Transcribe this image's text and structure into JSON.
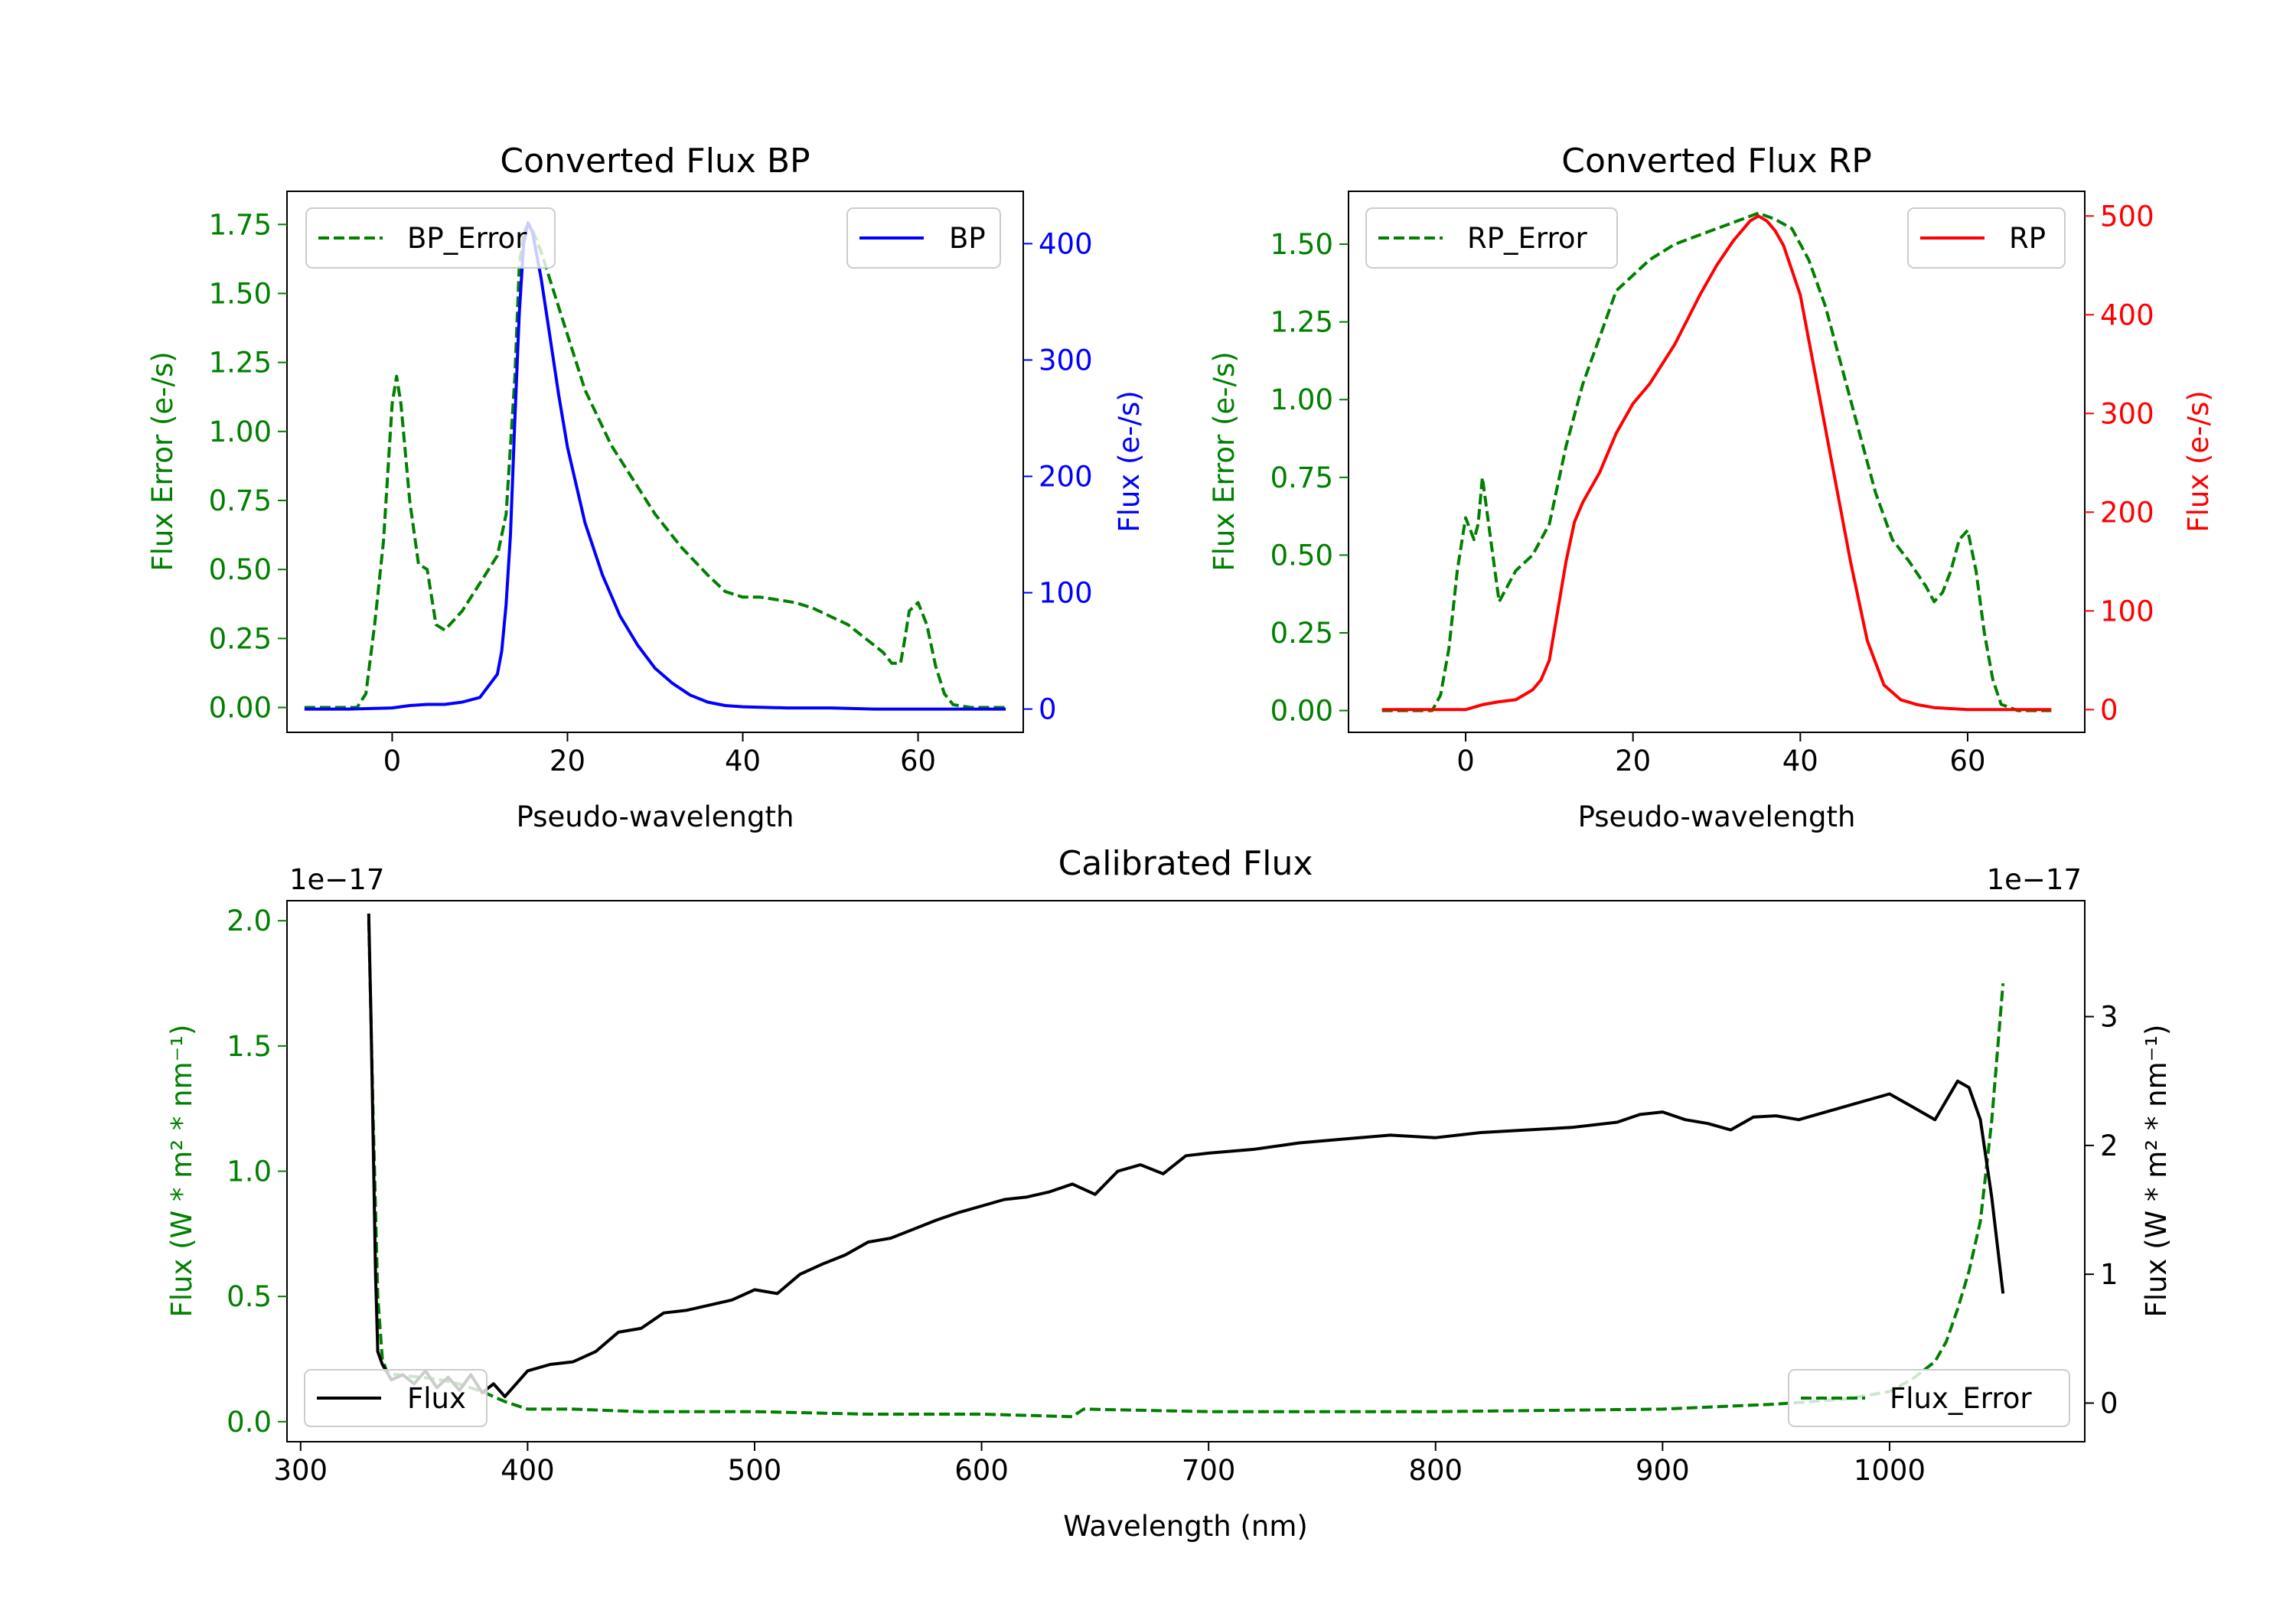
{
  "colors": {
    "axis": "#000000",
    "error_green": "#008000",
    "bp_blue": "#0000ff",
    "rp_red": "#ff0000",
    "flux_black": "#000000"
  },
  "chart_data": [
    {
      "id": "bp",
      "type": "line",
      "title": "Converted Flux BP",
      "xlabel": "Pseudo-wavelength",
      "ylabel_left": "Flux Error (e-/s)",
      "ylabel_right": "Flux (e-/s)",
      "xlim": [
        -12,
        72
      ],
      "ylim_left": [
        -0.09,
        1.87
      ],
      "ylim_right": [
        -20,
        445
      ],
      "xticks": [
        0,
        20,
        40,
        60
      ],
      "xtick_labels": [
        "0",
        "20",
        "40",
        "60"
      ],
      "yticks_left": [
        0,
        0.25,
        0.5,
        0.75,
        1.0,
        1.25,
        1.5,
        1.75
      ],
      "ytick_labels_left": [
        "0.00",
        "0.25",
        "0.50",
        "0.75",
        "1.00",
        "1.25",
        "1.50",
        "1.75"
      ],
      "yticks_right": [
        0,
        100,
        200,
        300,
        400
      ],
      "ytick_labels_right": [
        "0",
        "100",
        "200",
        "300",
        "400"
      ],
      "series": [
        {
          "name": "BP_Error",
          "axis": "left",
          "style": "dashed",
          "color": "#008000",
          "legend": "top-left",
          "x": [
            -10,
            -4,
            -3,
            -2,
            -1,
            0,
            0.5,
            1,
            2,
            3,
            4,
            5,
            6,
            8,
            10,
            12,
            13,
            14,
            14.5,
            15,
            15.5,
            16,
            17,
            18,
            20,
            22,
            25,
            28,
            30,
            33,
            36,
            38,
            40,
            42,
            44,
            46,
            48,
            50,
            52,
            54,
            56,
            57,
            58,
            58.5,
            59,
            60,
            61,
            62,
            63,
            64,
            66,
            70
          ],
          "values": [
            0,
            0,
            0.05,
            0.3,
            0.6,
            1.1,
            1.2,
            1.1,
            0.75,
            0.52,
            0.5,
            0.3,
            0.28,
            0.35,
            0.45,
            0.55,
            0.7,
            1.2,
            1.6,
            1.72,
            1.75,
            1.73,
            1.65,
            1.55,
            1.35,
            1.15,
            0.95,
            0.8,
            0.7,
            0.58,
            0.48,
            0.42,
            0.4,
            0.4,
            0.39,
            0.38,
            0.36,
            0.33,
            0.3,
            0.25,
            0.2,
            0.16,
            0.16,
            0.25,
            0.35,
            0.38,
            0.3,
            0.15,
            0.05,
            0.01,
            0,
            0
          ]
        },
        {
          "name": "BP",
          "axis": "right",
          "style": "solid",
          "color": "#0000ff",
          "legend": "top-right",
          "x": [
            -10,
            -5,
            0,
            2,
            4,
            6,
            8,
            10,
            12,
            12.5,
            13,
            13.5,
            14,
            14.5,
            15,
            15.5,
            16,
            16.5,
            17,
            18,
            19,
            20,
            22,
            24,
            26,
            28,
            30,
            32,
            34,
            36,
            38,
            40,
            45,
            50,
            55,
            60,
            65,
            70
          ],
          "values": [
            0,
            0,
            1,
            3,
            4,
            4,
            6,
            10,
            30,
            50,
            90,
            150,
            250,
            340,
            400,
            418,
            410,
            390,
            370,
            320,
            270,
            225,
            160,
            115,
            80,
            55,
            35,
            22,
            12,
            6,
            3,
            2,
            1,
            1,
            0,
            0,
            0,
            0
          ]
        }
      ]
    },
    {
      "id": "rp",
      "type": "line",
      "title": "Converted Flux RP",
      "xlabel": "Pseudo-wavelength",
      "ylabel_left": "Flux Error (e-/s)",
      "ylabel_right": "Flux (e-/s)",
      "xlim": [
        -14,
        74
      ],
      "ylim_left": [
        -0.07,
        1.67
      ],
      "ylim_right": [
        -23,
        525
      ],
      "xticks": [
        0,
        20,
        40,
        60
      ],
      "xtick_labels": [
        "0",
        "20",
        "40",
        "60"
      ],
      "yticks_left": [
        0,
        0.25,
        0.5,
        0.75,
        1.0,
        1.25,
        1.5
      ],
      "ytick_labels_left": [
        "0.00",
        "0.25",
        "0.50",
        "0.75",
        "1.00",
        "1.25",
        "1.50"
      ],
      "yticks_right": [
        0,
        100,
        200,
        300,
        400,
        500
      ],
      "ytick_labels_right": [
        "0",
        "100",
        "200",
        "300",
        "400",
        "500"
      ],
      "series": [
        {
          "name": "RP_Error",
          "axis": "left",
          "style": "dashed",
          "color": "#008000",
          "legend": "top-left",
          "x": [
            -10,
            -4,
            -3,
            -2,
            -1,
            0,
            1,
            1.5,
            2,
            3,
            4,
            5,
            6,
            8,
            10,
            12,
            14,
            16,
            18,
            20,
            22,
            25,
            28,
            30,
            33,
            35,
            37,
            39,
            41,
            43,
            45,
            47,
            49,
            51,
            53,
            55,
            56,
            57,
            58,
            59,
            60,
            61,
            62,
            63,
            64,
            66,
            70
          ],
          "values": [
            0,
            0,
            0.05,
            0.2,
            0.45,
            0.62,
            0.55,
            0.6,
            0.75,
            0.55,
            0.35,
            0.4,
            0.45,
            0.5,
            0.6,
            0.85,
            1.05,
            1.2,
            1.35,
            1.4,
            1.45,
            1.5,
            1.53,
            1.55,
            1.58,
            1.6,
            1.58,
            1.55,
            1.45,
            1.3,
            1.1,
            0.9,
            0.7,
            0.55,
            0.48,
            0.4,
            0.35,
            0.38,
            0.45,
            0.55,
            0.58,
            0.45,
            0.25,
            0.1,
            0.02,
            0,
            0
          ]
        },
        {
          "name": "RP",
          "axis": "right",
          "style": "solid",
          "color": "#ff0000",
          "legend": "top-right",
          "x": [
            -10,
            -5,
            0,
            2,
            4,
            6,
            8,
            9,
            10,
            11,
            12,
            13,
            14,
            16,
            18,
            20,
            22,
            25,
            28,
            30,
            32,
            34,
            35,
            36,
            37,
            38,
            40,
            42,
            44,
            46,
            48,
            50,
            52,
            54,
            56,
            58,
            60,
            65,
            70
          ],
          "values": [
            0,
            0,
            0,
            5,
            8,
            10,
            20,
            30,
            50,
            100,
            150,
            190,
            210,
            240,
            280,
            310,
            330,
            370,
            420,
            450,
            475,
            495,
            500,
            495,
            485,
            470,
            420,
            330,
            240,
            150,
            70,
            25,
            10,
            5,
            2,
            1,
            0,
            0,
            0
          ]
        }
      ]
    },
    {
      "id": "calibrated",
      "type": "line",
      "title": "Calibrated Flux",
      "xlabel": "Wavelength (nm)",
      "ylabel_left": "Flux (W * m² * nm⁻¹)",
      "ylabel_right": "Flux (W * m² * nm⁻¹)",
      "offset_left": "1e−17",
      "offset_right": "1e−17",
      "xlim": [
        294,
        1086
      ],
      "ylim_left": [
        -0.08,
        2.08
      ],
      "ylim_right": [
        -0.3,
        3.9
      ],
      "xticks": [
        300,
        400,
        500,
        600,
        700,
        800,
        900,
        1000
      ],
      "xtick_labels": [
        "300",
        "400",
        "500",
        "600",
        "700",
        "800",
        "900",
        "1000"
      ],
      "yticks_left": [
        0,
        0.5,
        1.0,
        1.5,
        2.0
      ],
      "ytick_labels_left": [
        "0.0",
        "0.5",
        "1.0",
        "1.5",
        "2.0"
      ],
      "yticks_right": [
        0,
        1,
        2,
        3
      ],
      "ytick_labels_right": [
        "0",
        "1",
        "2",
        "3"
      ],
      "series": [
        {
          "name": "Flux_Error",
          "axis": "left",
          "style": "dashed",
          "color": "#008000",
          "legend": "bottom-right",
          "x": [
            330,
            332,
            334,
            336,
            338,
            340,
            350,
            360,
            370,
            380,
            390,
            400,
            420,
            450,
            500,
            550,
            600,
            640,
            645,
            700,
            800,
            900,
            950,
            980,
            1000,
            1010,
            1020,
            1025,
            1030,
            1035,
            1040,
            1045,
            1050
          ],
          "values": [
            2.0,
            1.2,
            0.5,
            0.25,
            0.2,
            0.19,
            0.18,
            0.17,
            0.15,
            0.12,
            0.08,
            0.05,
            0.05,
            0.04,
            0.04,
            0.03,
            0.03,
            0.02,
            0.05,
            0.04,
            0.04,
            0.05,
            0.07,
            0.09,
            0.12,
            0.17,
            0.24,
            0.32,
            0.45,
            0.6,
            0.8,
            1.2,
            1.75
          ]
        },
        {
          "name": "Flux",
          "axis": "right",
          "style": "solid",
          "color": "#000000",
          "legend": "bottom-left",
          "x": [
            330,
            331,
            332,
            333,
            334,
            336,
            340,
            345,
            350,
            355,
            360,
            365,
            370,
            375,
            380,
            385,
            390,
            400,
            410,
            420,
            430,
            440,
            450,
            460,
            470,
            480,
            490,
            500,
            510,
            520,
            530,
            540,
            550,
            560,
            570,
            580,
            590,
            600,
            610,
            620,
            630,
            640,
            650,
            660,
            670,
            680,
            690,
            700,
            720,
            740,
            760,
            780,
            800,
            820,
            840,
            860,
            880,
            890,
            900,
            910,
            920,
            930,
            940,
            950,
            960,
            980,
            1000,
            1010,
            1020,
            1030,
            1035,
            1040,
            1045,
            1050
          ],
          "values": [
            3.8,
            3.0,
            2.0,
            1.0,
            0.4,
            0.3,
            0.18,
            0.22,
            0.15,
            0.25,
            0.12,
            0.2,
            0.1,
            0.22,
            0.08,
            0.15,
            0.05,
            0.25,
            0.3,
            0.32,
            0.4,
            0.55,
            0.58,
            0.7,
            0.72,
            0.76,
            0.8,
            0.88,
            0.85,
            1.0,
            1.08,
            1.15,
            1.25,
            1.28,
            1.35,
            1.42,
            1.48,
            1.53,
            1.58,
            1.6,
            1.64,
            1.7,
            1.62,
            1.8,
            1.85,
            1.78,
            1.92,
            1.94,
            1.97,
            2.02,
            2.05,
            2.08,
            2.06,
            2.1,
            2.12,
            2.14,
            2.18,
            2.24,
            2.26,
            2.2,
            2.17,
            2.12,
            2.22,
            2.23,
            2.2,
            2.3,
            2.4,
            2.3,
            2.2,
            2.5,
            2.45,
            2.2,
            1.6,
            0.85
          ]
        }
      ]
    }
  ]
}
